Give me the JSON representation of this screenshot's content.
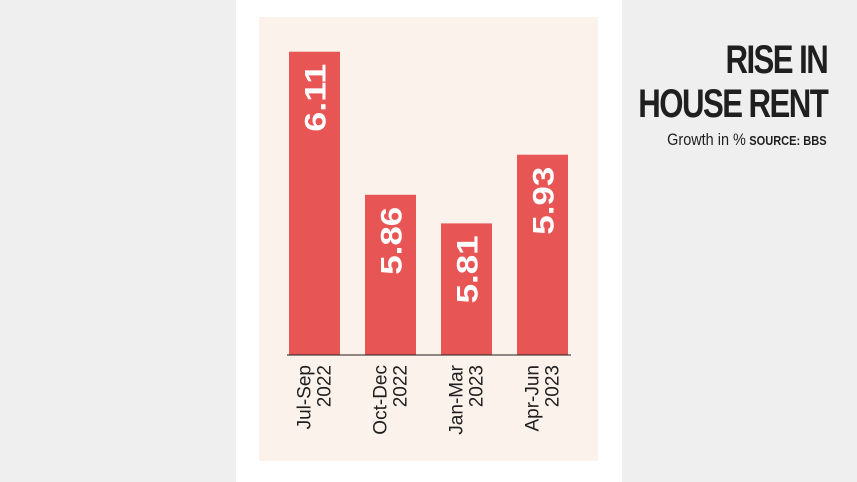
{
  "chart_data": {
    "type": "bar",
    "title": "RISE IN\nHOUSE RENT",
    "subtitle": "Growth in %",
    "source": "SOURCE: BBS",
    "categories": [
      "Jul-Sep\n2022",
      "Oct-Dec\n2022",
      "Jan-Mar\n2023",
      "Apr-Jun\n2023"
    ],
    "values": [
      6.11,
      5.86,
      5.81,
      5.93
    ],
    "value_labels": [
      "6.11",
      "5.86",
      "5.81",
      "5.93"
    ],
    "ylim": [
      5.58,
      6.12
    ],
    "grid": false,
    "legend": "none",
    "bar_color": "#e85555",
    "label_color": "#ffffff",
    "axis_color": "#1f1f1f"
  }
}
